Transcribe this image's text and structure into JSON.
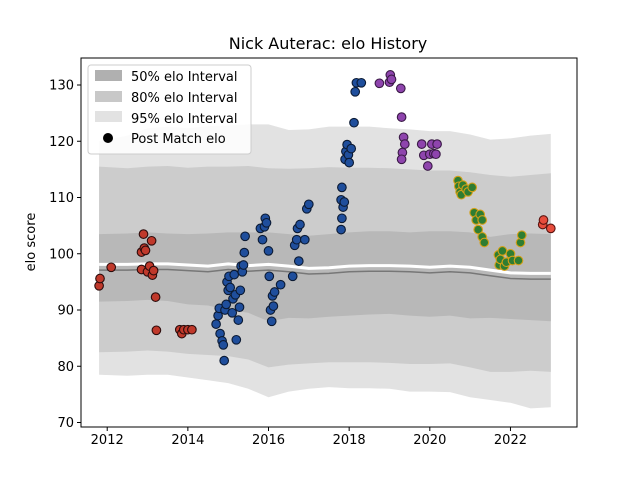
{
  "chart_data": {
    "type": "scatter",
    "title": "Nick Auterac: elo History",
    "xlabel": "",
    "ylabel": "elo score",
    "xlim": [
      2011.35,
      2023.65
    ],
    "ylim": [
      69.2,
      134.8
    ],
    "xticks": [
      2012,
      2014,
      2016,
      2018,
      2020,
      2022
    ],
    "yticks": [
      70,
      80,
      90,
      100,
      110,
      120,
      130
    ],
    "legend_position": "top-left",
    "legend": [
      {
        "label": "50% elo Interval",
        "kind": "band",
        "color": "#b0b0b0"
      },
      {
        "label": "80% elo Interval",
        "kind": "band",
        "color": "#c8c8c8"
      },
      {
        "label": "95% elo Interval",
        "kind": "band",
        "color": "#e2e2e2"
      },
      {
        "label": "Post Match elo",
        "kind": "marker",
        "color": "#000000"
      }
    ],
    "intervals": {
      "x": [
        2011.8,
        2012.5,
        2013.0,
        2013.5,
        2014.0,
        2014.5,
        2015.0,
        2015.5,
        2016.0,
        2016.5,
        2017.0,
        2017.5,
        2018.0,
        2018.5,
        2019.0,
        2019.5,
        2020.0,
        2020.5,
        2021.0,
        2021.5,
        2022.0,
        2022.5,
        2023.0
      ],
      "mean": [
        97.5,
        97.5,
        97.6,
        97.6,
        97.4,
        97.2,
        97.6,
        97.3,
        97.5,
        97.2,
        96.8,
        96.9,
        97.2,
        97.3,
        97.3,
        97.2,
        97.0,
        97.2,
        97.0,
        96.5,
        96.0,
        95.9,
        95.9
      ],
      "lo50": [
        91.5,
        91.6,
        91.8,
        91.6,
        91.0,
        90.8,
        90.0,
        89.5,
        88.0,
        88.6,
        88.5,
        88.8,
        89.0,
        89.2,
        89.3,
        89.0,
        88.8,
        89.0,
        88.5,
        88.6,
        88.4,
        88.2,
        88.0
      ],
      "hi50": [
        103.5,
        103.6,
        103.8,
        103.6,
        103.5,
        103.6,
        103.8,
        103.8,
        103.8,
        103.5,
        103.2,
        103.5,
        103.8,
        104.0,
        104.0,
        103.8,
        104.0,
        104.0,
        103.8,
        103.0,
        103.5,
        103.6,
        103.5
      ],
      "lo80": [
        82.5,
        82.6,
        82.8,
        82.6,
        82.2,
        82.0,
        81.8,
        81.2,
        79.8,
        80.3,
        80.5,
        80.7,
        80.7,
        80.7,
        80.6,
        80.4,
        80.4,
        80.5,
        79.8,
        79.0,
        79.0,
        79.2,
        79.0
      ],
      "hi80": [
        115.5,
        115.2,
        115.5,
        115.6,
        115.3,
        115.5,
        115.5,
        115.6,
        115.2,
        115.1,
        115.2,
        115.4,
        115.3,
        115.3,
        115.2,
        115.0,
        114.8,
        114.8,
        114.5,
        114.0,
        113.7,
        114.0,
        114.3
      ],
      "lo95": [
        78.5,
        78.3,
        78.5,
        78.5,
        78.0,
        77.5,
        77.0,
        76.0,
        74.5,
        75.5,
        76.0,
        76.3,
        76.1,
        76.1,
        76.0,
        75.5,
        75.5,
        75.4,
        74.5,
        74.0,
        73.5,
        72.5,
        72.7
      ],
      "hi95": [
        120.0,
        121.0,
        122.3,
        122.6,
        122.3,
        122.7,
        122.8,
        123.0,
        123.0,
        122.0,
        122.1,
        122.6,
        122.6,
        122.6,
        122.3,
        122.1,
        121.8,
        121.8,
        121.2,
        120.3,
        120.5,
        121.0,
        121.3
      ]
    },
    "series": [
      {
        "color": "#c0392b",
        "edge": "#2b0c0c",
        "points": [
          [
            2011.8,
            94.3
          ],
          [
            2011.82,
            95.6
          ],
          [
            2012.1,
            97.6
          ],
          [
            2012.85,
            97.2
          ],
          [
            2012.85,
            100.3
          ],
          [
            2012.9,
            103.5
          ],
          [
            2012.92,
            101.0
          ],
          [
            2012.95,
            100.6
          ],
          [
            2013.0,
            96.8
          ],
          [
            2013.05,
            97.8
          ],
          [
            2013.1,
            102.3
          ],
          [
            2013.12,
            96.2
          ],
          [
            2013.15,
            97.0
          ],
          [
            2013.2,
            92.3
          ],
          [
            2013.22,
            86.4
          ],
          [
            2013.8,
            86.5
          ],
          [
            2013.85,
            85.8
          ],
          [
            2013.9,
            86.5
          ],
          [
            2014.0,
            86.5
          ],
          [
            2014.1,
            86.5
          ]
        ]
      },
      {
        "color": "#1f4e9c",
        "edge": "#0b1a33",
        "points": [
          [
            2014.7,
            87.5
          ],
          [
            2014.75,
            89.0
          ],
          [
            2014.78,
            90.3
          ],
          [
            2014.8,
            85.8
          ],
          [
            2014.85,
            84.5
          ],
          [
            2014.88,
            83.8
          ],
          [
            2014.9,
            81.0
          ],
          [
            2014.92,
            90.0
          ],
          [
            2014.95,
            91.0
          ],
          [
            2014.97,
            95.0
          ],
          [
            2015.0,
            93.5
          ],
          [
            2015.02,
            96.0
          ],
          [
            2015.05,
            94.0
          ],
          [
            2015.1,
            89.5
          ],
          [
            2015.12,
            92.0
          ],
          [
            2015.15,
            96.3
          ],
          [
            2015.18,
            92.7
          ],
          [
            2015.2,
            84.7
          ],
          [
            2015.25,
            88.2
          ],
          [
            2015.28,
            90.5
          ],
          [
            2015.3,
            93.5
          ],
          [
            2015.32,
            97.8
          ],
          [
            2015.35,
            96.8
          ],
          [
            2015.38,
            98.0
          ],
          [
            2015.4,
            100.2
          ],
          [
            2015.42,
            103.1
          ],
          [
            2015.8,
            104.5
          ],
          [
            2015.85,
            102.5
          ],
          [
            2015.9,
            104.8
          ],
          [
            2015.92,
            106.3
          ],
          [
            2015.95,
            105.5
          ],
          [
            2016.0,
            100.5
          ],
          [
            2016.02,
            96.0
          ],
          [
            2016.05,
            90.0
          ],
          [
            2016.08,
            88.0
          ],
          [
            2016.1,
            92.5
          ],
          [
            2016.12,
            90.7
          ],
          [
            2016.15,
            93.2
          ],
          [
            2016.3,
            94.5
          ],
          [
            2016.6,
            96.0
          ],
          [
            2016.65,
            101.5
          ],
          [
            2016.7,
            102.5
          ],
          [
            2016.72,
            104.5
          ],
          [
            2016.75,
            98.7
          ],
          [
            2016.78,
            105.2
          ],
          [
            2016.9,
            102.5
          ],
          [
            2016.95,
            108.0
          ],
          [
            2017.0,
            108.8
          ],
          [
            2017.8,
            104.3
          ],
          [
            2017.82,
            106.3
          ],
          [
            2017.85,
            108.3
          ],
          [
            2017.8,
            109.6
          ],
          [
            2017.82,
            111.8
          ],
          [
            2017.88,
            109.2
          ],
          [
            2017.9,
            116.8
          ],
          [
            2017.92,
            118.2
          ],
          [
            2017.95,
            119.4
          ],
          [
            2017.98,
            117.6
          ],
          [
            2018.0,
            116.2
          ],
          [
            2018.05,
            118.7
          ],
          [
            2018.12,
            123.3
          ],
          [
            2018.15,
            128.8
          ],
          [
            2018.18,
            130.4
          ],
          [
            2018.3,
            130.4
          ]
        ]
      },
      {
        "color": "#8e44ad",
        "edge": "#3a1a46",
        "points": [
          [
            2018.75,
            130.3
          ],
          [
            2019.0,
            130.5
          ],
          [
            2019.02,
            131.8
          ],
          [
            2019.05,
            131.0
          ],
          [
            2019.28,
            129.4
          ],
          [
            2019.3,
            124.3
          ],
          [
            2019.35,
            120.7
          ],
          [
            2019.38,
            119.5
          ],
          [
            2019.32,
            118.0
          ],
          [
            2019.3,
            116.8
          ],
          [
            2019.8,
            119.5
          ],
          [
            2019.85,
            117.5
          ],
          [
            2019.95,
            115.6
          ],
          [
            2020.0,
            117.7
          ],
          [
            2020.05,
            119.5
          ],
          [
            2020.1,
            117.8
          ],
          [
            2020.15,
            117.7
          ],
          [
            2020.18,
            119.5
          ]
        ]
      },
      {
        "color": "#2e7d32",
        "edge": "#d4a017",
        "points": [
          [
            2020.7,
            113.0
          ],
          [
            2020.72,
            112.0
          ],
          [
            2020.75,
            111.0
          ],
          [
            2020.78,
            110.5
          ],
          [
            2020.82,
            112.2
          ],
          [
            2020.9,
            111.5
          ],
          [
            2020.95,
            111.0
          ],
          [
            2021.05,
            111.8
          ],
          [
            2021.1,
            107.3
          ],
          [
            2021.15,
            106.0
          ],
          [
            2021.2,
            104.3
          ],
          [
            2021.25,
            107.0
          ],
          [
            2021.3,
            103.0
          ],
          [
            2021.35,
            102.0
          ],
          [
            2021.3,
            106.0
          ],
          [
            2021.7,
            99.8
          ],
          [
            2021.72,
            98.0
          ],
          [
            2021.75,
            99.0
          ],
          [
            2021.8,
            100.5
          ],
          [
            2021.85,
            97.8
          ],
          [
            2021.9,
            98.5
          ],
          [
            2022.0,
            100.0
          ],
          [
            2022.05,
            98.8
          ],
          [
            2022.2,
            98.8
          ],
          [
            2022.25,
            102.0
          ],
          [
            2022.28,
            103.3
          ]
        ]
      },
      {
        "color": "#e74c3c",
        "edge": "#5a1410",
        "points": [
          [
            2022.8,
            105.2
          ],
          [
            2022.82,
            106.0
          ],
          [
            2023.0,
            104.5
          ]
        ]
      }
    ]
  }
}
